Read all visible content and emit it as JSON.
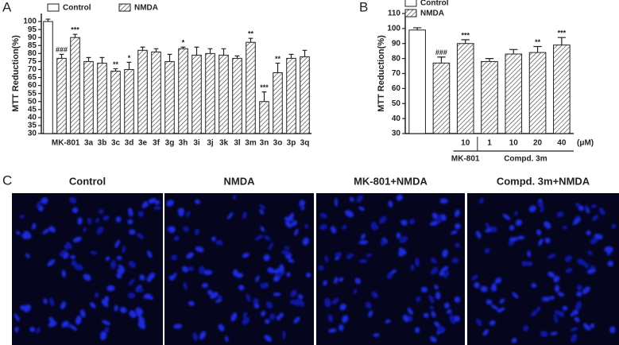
{
  "panel_labels": [
    "A",
    "B",
    "C"
  ],
  "chart_data": [
    {
      "type": "bar",
      "ylabel": "MTT Reduction(%)",
      "categories": [
        null,
        null,
        "MK-801",
        "3a",
        "3b",
        "3c",
        "3d",
        "3e",
        "3f",
        "3g",
        "3h",
        "3i",
        "3j",
        "3k",
        "3l",
        "3m",
        "3n",
        "3o",
        "3p",
        "3q"
      ],
      "series": [
        {
          "name": "Control",
          "color": "#ffffff",
          "pattern": "none",
          "values": [
            100,
            null,
            null,
            null,
            null,
            null,
            null,
            null,
            null,
            null,
            null,
            null,
            null,
            null,
            null,
            null,
            null,
            null,
            null,
            null
          ],
          "errors": [
            1.5,
            null,
            null,
            null,
            null,
            null,
            null,
            null,
            null,
            null,
            null,
            null,
            null,
            null,
            null,
            null,
            null,
            null,
            null,
            null
          ]
        },
        {
          "name": "NMDA",
          "color": "#ffffff",
          "pattern": "hatch",
          "values": [
            null,
            77,
            90,
            75,
            74,
            69,
            70,
            82,
            81,
            75,
            83,
            79,
            80,
            79,
            77,
            87,
            50,
            68,
            77,
            78
          ],
          "errors": [
            null,
            2.5,
            2,
            2.5,
            3.5,
            1.5,
            4.5,
            2,
            2,
            4.5,
            1,
            5,
            3,
            4,
            1.5,
            2.5,
            6,
            6,
            2.5,
            4
          ]
        }
      ],
      "significance": [
        null,
        "###",
        "***",
        null,
        null,
        "**",
        "*",
        null,
        null,
        null,
        "*",
        null,
        null,
        null,
        null,
        "**",
        "***",
        "**",
        null,
        null
      ],
      "ylim": [
        30,
        105
      ],
      "yticks": [
        30,
        35,
        40,
        45,
        50,
        55,
        60,
        65,
        70,
        75,
        80,
        85,
        90,
        95,
        100
      ],
      "legend": "top"
    },
    {
      "type": "bar",
      "ylabel": "MTT Reduction(%)",
      "categories": [
        null,
        null,
        "10",
        "1",
        "10",
        "20",
        "40"
      ],
      "category_groups": [
        null,
        null,
        "MK-801",
        "Compd. 3m",
        "Compd. 3m",
        "Compd. 3m",
        "Compd. 3m"
      ],
      "unit": "(μM)",
      "series": [
        {
          "name": "Control",
          "color": "#ffffff",
          "pattern": "none",
          "values": [
            99,
            null,
            null,
            null,
            null,
            null,
            null
          ],
          "errors": [
            1.5,
            null,
            null,
            null,
            null,
            null,
            null
          ]
        },
        {
          "name": "NMDA",
          "color": "#ffffff",
          "pattern": "hatch",
          "values": [
            null,
            77,
            90,
            78,
            83,
            84,
            89
          ],
          "errors": [
            null,
            4,
            2.5,
            2,
            3,
            4,
            5
          ]
        }
      ],
      "significance": [
        null,
        "###",
        "***",
        null,
        null,
        "**",
        "***"
      ],
      "ylim": [
        30,
        110
      ],
      "yticks": [
        30,
        40,
        50,
        60,
        70,
        80,
        90,
        100,
        110
      ],
      "legend": "top-left"
    }
  ],
  "images": [
    {
      "label": "Control"
    },
    {
      "label": "NMDA"
    },
    {
      "label": "MK-801+NMDA"
    },
    {
      "label": "Compd. 3m+NMDA"
    }
  ]
}
